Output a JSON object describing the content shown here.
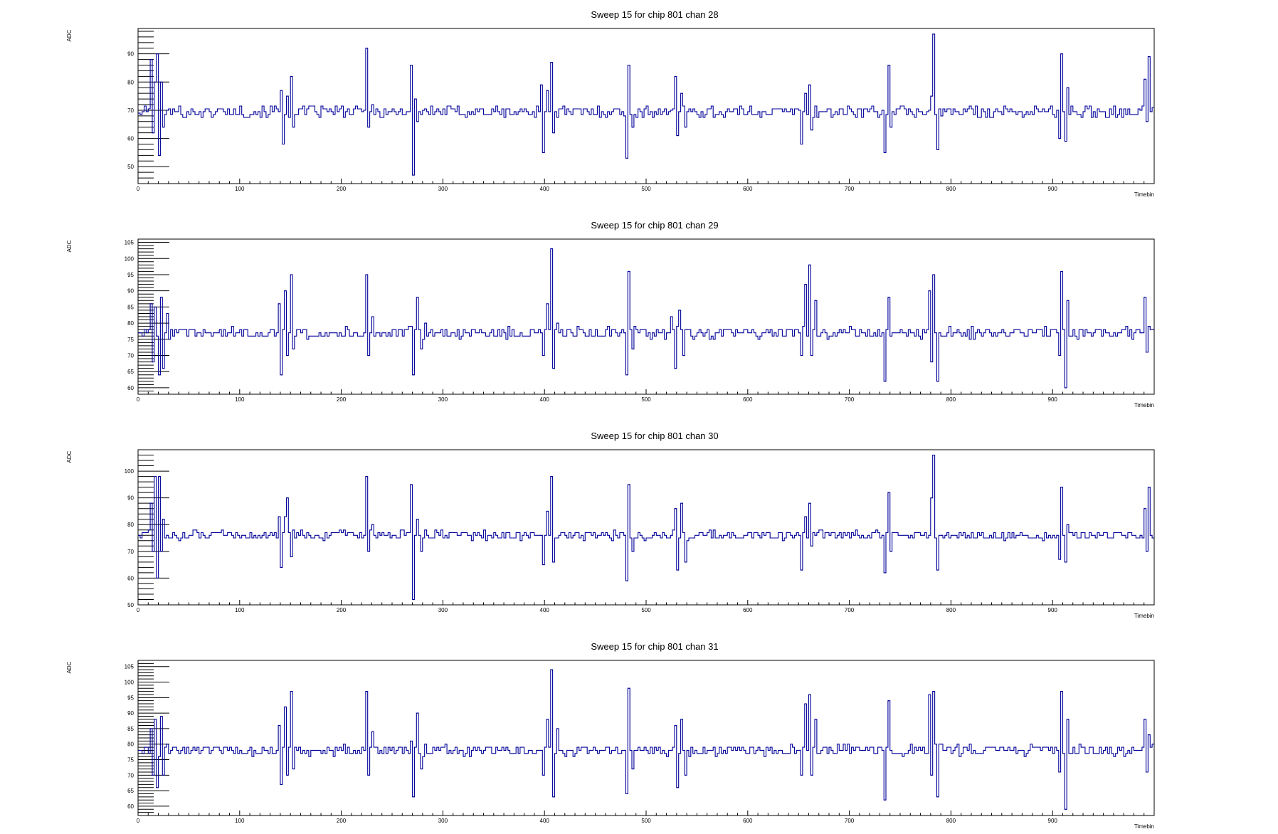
{
  "chart_data": [
    {
      "type": "line",
      "title": "Sweep 15 for chip 801 chan 28",
      "xlabel": "Timebin",
      "ylabel": "ADC",
      "xlim": [
        0,
        1000
      ],
      "ylim": [
        44,
        99
      ],
      "x_ticks": [
        0,
        100,
        200,
        300,
        400,
        500,
        600,
        700,
        800,
        900
      ],
      "y_ticks": [
        50,
        60,
        70,
        80,
        90
      ],
      "baseline": 69.5,
      "noise": 1.2,
      "color": "#000099",
      "series": [
        {
          "name": "",
          "x": [
            0,
            12,
            14,
            16,
            18,
            20,
            22,
            24,
            28,
            140,
            143,
            146,
            150,
            153,
            222,
            225,
            227,
            230,
            268,
            270,
            272,
            275,
            280,
            396,
            399,
            402,
            406,
            409,
            478,
            481,
            483,
            486,
            525,
            528,
            531,
            535,
            538,
            650,
            653,
            656,
            660,
            663,
            732,
            735,
            738,
            741,
            778,
            781,
            783,
            786,
            790,
            904,
            907,
            909,
            912,
            915,
            987,
            990,
            992,
            995,
            999
          ],
          "values": [
            69,
            88,
            62,
            80,
            90,
            54,
            80,
            64,
            70,
            77,
            58,
            75,
            82,
            64,
            70,
            92,
            64,
            72,
            86,
            47,
            74,
            66,
            70,
            79,
            55,
            77,
            87,
            62,
            68,
            53,
            86,
            64,
            70,
            82,
            61,
            76,
            64,
            70,
            58,
            76,
            79,
            63,
            70,
            55,
            86,
            64,
            70,
            75,
            97,
            56,
            68,
            70,
            60,
            90,
            59,
            78,
            70,
            81,
            66,
            89,
            71
          ]
        }
      ]
    },
    {
      "type": "line",
      "title": "Sweep 15 for chip 801 chan 29",
      "xlabel": "Timebin",
      "ylabel": "ADC",
      "xlim": [
        0,
        1000
      ],
      "ylim": [
        58,
        106
      ],
      "x_ticks": [
        0,
        100,
        200,
        300,
        400,
        500,
        600,
        700,
        800,
        900
      ],
      "y_ticks": [
        60,
        65,
        70,
        75,
        80,
        85,
        90,
        95,
        100,
        105
      ],
      "baseline": 77,
      "noise": 1.0,
      "color": "#000099",
      "series": [
        {
          "name": "",
          "x": [
            0,
            12,
            14,
            16,
            18,
            20,
            22,
            24,
            28,
            32,
            138,
            141,
            144,
            147,
            150,
            153,
            222,
            225,
            227,
            230,
            268,
            271,
            275,
            279,
            283,
            396,
            399,
            402,
            406,
            409,
            412,
            478,
            481,
            483,
            486,
            520,
            524,
            528,
            532,
            536,
            540,
            650,
            653,
            656,
            660,
            663,
            666,
            732,
            735,
            738,
            778,
            781,
            783,
            786,
            790,
            904,
            907,
            909,
            912,
            915,
            987,
            990,
            992,
            995,
            999
          ],
          "values": [
            77,
            86,
            68,
            85,
            76,
            64,
            88,
            66,
            83,
            78,
            86,
            64,
            90,
            70,
            95,
            72,
            77,
            95,
            70,
            82,
            79,
            64,
            88,
            72,
            80,
            77,
            70,
            86,
            103,
            66,
            80,
            77,
            64,
            96,
            72,
            77,
            82,
            66,
            84,
            70,
            78,
            77,
            70,
            92,
            98,
            70,
            87,
            77,
            62,
            88,
            90,
            68,
            95,
            62,
            76,
            77,
            70,
            96,
            60,
            87,
            77,
            88,
            71,
            79,
            78
          ]
        }
      ]
    },
    {
      "type": "line",
      "title": "Sweep 15 for chip 801 chan 30",
      "xlabel": "Timebin",
      "ylabel": "ADC",
      "xlim": [
        0,
        1000
      ],
      "ylim": [
        50,
        108
      ],
      "x_ticks": [
        0,
        100,
        200,
        300,
        400,
        500,
        600,
        700,
        800,
        900
      ],
      "y_ticks": [
        50,
        60,
        70,
        80,
        90,
        100
      ],
      "baseline": 76,
      "noise": 1.0,
      "color": "#000099",
      "series": [
        {
          "name": "",
          "x": [
            0,
            12,
            14,
            16,
            18,
            20,
            22,
            24,
            28,
            138,
            141,
            144,
            147,
            150,
            153,
            222,
            225,
            227,
            230,
            268,
            271,
            275,
            279,
            283,
            396,
            399,
            402,
            406,
            409,
            478,
            481,
            483,
            486,
            525,
            528,
            531,
            535,
            538,
            650,
            653,
            656,
            660,
            663,
            732,
            735,
            738,
            741,
            778,
            781,
            783,
            786,
            790,
            904,
            907,
            909,
            912,
            915,
            987,
            990,
            992,
            995,
            999
          ],
          "values": [
            76,
            88,
            70,
            98,
            60,
            98,
            70,
            82,
            76,
            83,
            64,
            83,
            90,
            68,
            78,
            76,
            98,
            70,
            80,
            95,
            52,
            82,
            70,
            78,
            76,
            65,
            85,
            98,
            66,
            76,
            59,
            95,
            70,
            76,
            86,
            63,
            88,
            66,
            76,
            63,
            83,
            88,
            72,
            76,
            62,
            92,
            70,
            76,
            90,
            106,
            63,
            76,
            76,
            67,
            94,
            66,
            80,
            76,
            86,
            70,
            94,
            75
          ]
        }
      ]
    },
    {
      "type": "line",
      "title": "Sweep 15 for chip 801 chan 31",
      "xlabel": "Timebin",
      "ylabel": "ADC",
      "xlim": [
        0,
        1000
      ],
      "ylim": [
        57,
        107
      ],
      "x_ticks": [
        0,
        100,
        200,
        300,
        400,
        500,
        600,
        700,
        800,
        900
      ],
      "y_ticks": [
        60,
        65,
        70,
        75,
        80,
        85,
        90,
        95,
        100,
        105
      ],
      "baseline": 78,
      "noise": 1.0,
      "color": "#000099",
      "series": [
        {
          "name": "",
          "x": [
            0,
            12,
            14,
            16,
            18,
            20,
            22,
            24,
            28,
            138,
            141,
            144,
            147,
            150,
            153,
            222,
            225,
            227,
            230,
            268,
            271,
            275,
            279,
            283,
            396,
            399,
            402,
            406,
            409,
            412,
            478,
            481,
            483,
            486,
            525,
            528,
            531,
            535,
            538,
            650,
            653,
            656,
            660,
            663,
            666,
            732,
            735,
            738,
            778,
            781,
            783,
            786,
            790,
            904,
            907,
            909,
            912,
            915,
            987,
            990,
            992,
            995,
            999
          ],
          "values": [
            78,
            85,
            70,
            88,
            66,
            76,
            89,
            70,
            80,
            86,
            67,
            92,
            70,
            97,
            72,
            78,
            97,
            70,
            84,
            81,
            63,
            90,
            72,
            80,
            78,
            70,
            88,
            104,
            63,
            85,
            78,
            64,
            98,
            72,
            78,
            86,
            66,
            88,
            70,
            78,
            70,
            93,
            96,
            70,
            88,
            78,
            62,
            94,
            96,
            70,
            97,
            63,
            80,
            78,
            71,
            97,
            59,
            88,
            78,
            88,
            71,
            83,
            80
          ]
        }
      ]
    }
  ]
}
